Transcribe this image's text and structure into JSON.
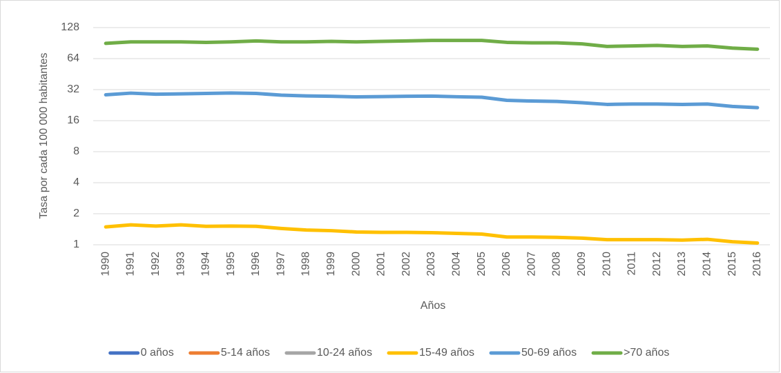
{
  "chart_data": {
    "type": "line",
    "x_label": "Años",
    "y_label": "Tasa por cada 100 000 habitantes",
    "categories": [
      "1990",
      "1991",
      "1992",
      "1993",
      "1994",
      "1995",
      "1996",
      "1997",
      "1998",
      "1999",
      "2000",
      "2001",
      "2002",
      "2003",
      "2004",
      "2005",
      "2006",
      "2007",
      "2008",
      "2009",
      "2010",
      "2011",
      "2012",
      "2013",
      "2014",
      "2015",
      "2016"
    ],
    "yscale": "log",
    "ylim": [
      1,
      128
    ],
    "yticks": [
      1,
      2,
      4,
      8,
      16,
      32,
      64,
      128
    ],
    "grid": true,
    "legend": "bottom",
    "series": [
      {
        "name": "0 años",
        "color": "#4472c4",
        "values": [
          null,
          null,
          null,
          null,
          null,
          null,
          null,
          null,
          null,
          null,
          null,
          null,
          null,
          null,
          null,
          null,
          null,
          null,
          null,
          null,
          null,
          null,
          null,
          null,
          null,
          null,
          null
        ]
      },
      {
        "name": "5-14 años",
        "color": "#ed7d31",
        "values": [
          null,
          null,
          null,
          null,
          null,
          null,
          null,
          null,
          null,
          null,
          null,
          null,
          null,
          null,
          null,
          null,
          null,
          null,
          null,
          null,
          null,
          null,
          null,
          null,
          null,
          null,
          null
        ]
      },
      {
        "name": "10-24 años",
        "color": "#a5a5a5",
        "values": [
          null,
          null,
          null,
          null,
          null,
          null,
          null,
          null,
          null,
          null,
          null,
          null,
          null,
          null,
          null,
          null,
          null,
          null,
          null,
          null,
          null,
          null,
          null,
          null,
          null,
          null,
          null
        ]
      },
      {
        "name": "15-49 años",
        "color": "#ffc000",
        "values": [
          1.49,
          1.56,
          1.52,
          1.56,
          1.51,
          1.52,
          1.51,
          1.44,
          1.39,
          1.37,
          1.33,
          1.32,
          1.32,
          1.31,
          1.29,
          1.27,
          1.19,
          1.19,
          1.18,
          1.16,
          1.12,
          1.12,
          1.12,
          1.11,
          1.13,
          1.07,
          1.04
        ]
      },
      {
        "name": "50-69 años",
        "color": "#5b9bd5",
        "values": [
          28.5,
          29.6,
          28.9,
          29.1,
          29.4,
          29.7,
          29.4,
          28.3,
          27.8,
          27.6,
          27.2,
          27.4,
          27.6,
          27.7,
          27.3,
          27.0,
          25.2,
          24.8,
          24.6,
          23.9,
          23.0,
          23.2,
          23.2,
          23.0,
          23.2,
          22.0,
          21.4
        ]
      },
      {
        "name": ">70 años",
        "color": "#70ad47",
        "values": [
          90,
          93,
          93,
          93,
          92,
          93,
          95,
          93,
          93,
          94,
          93,
          94,
          95,
          96,
          96,
          96,
          92,
          91,
          91,
          89,
          84,
          85,
          86,
          84,
          85,
          81,
          79
        ]
      }
    ]
  }
}
